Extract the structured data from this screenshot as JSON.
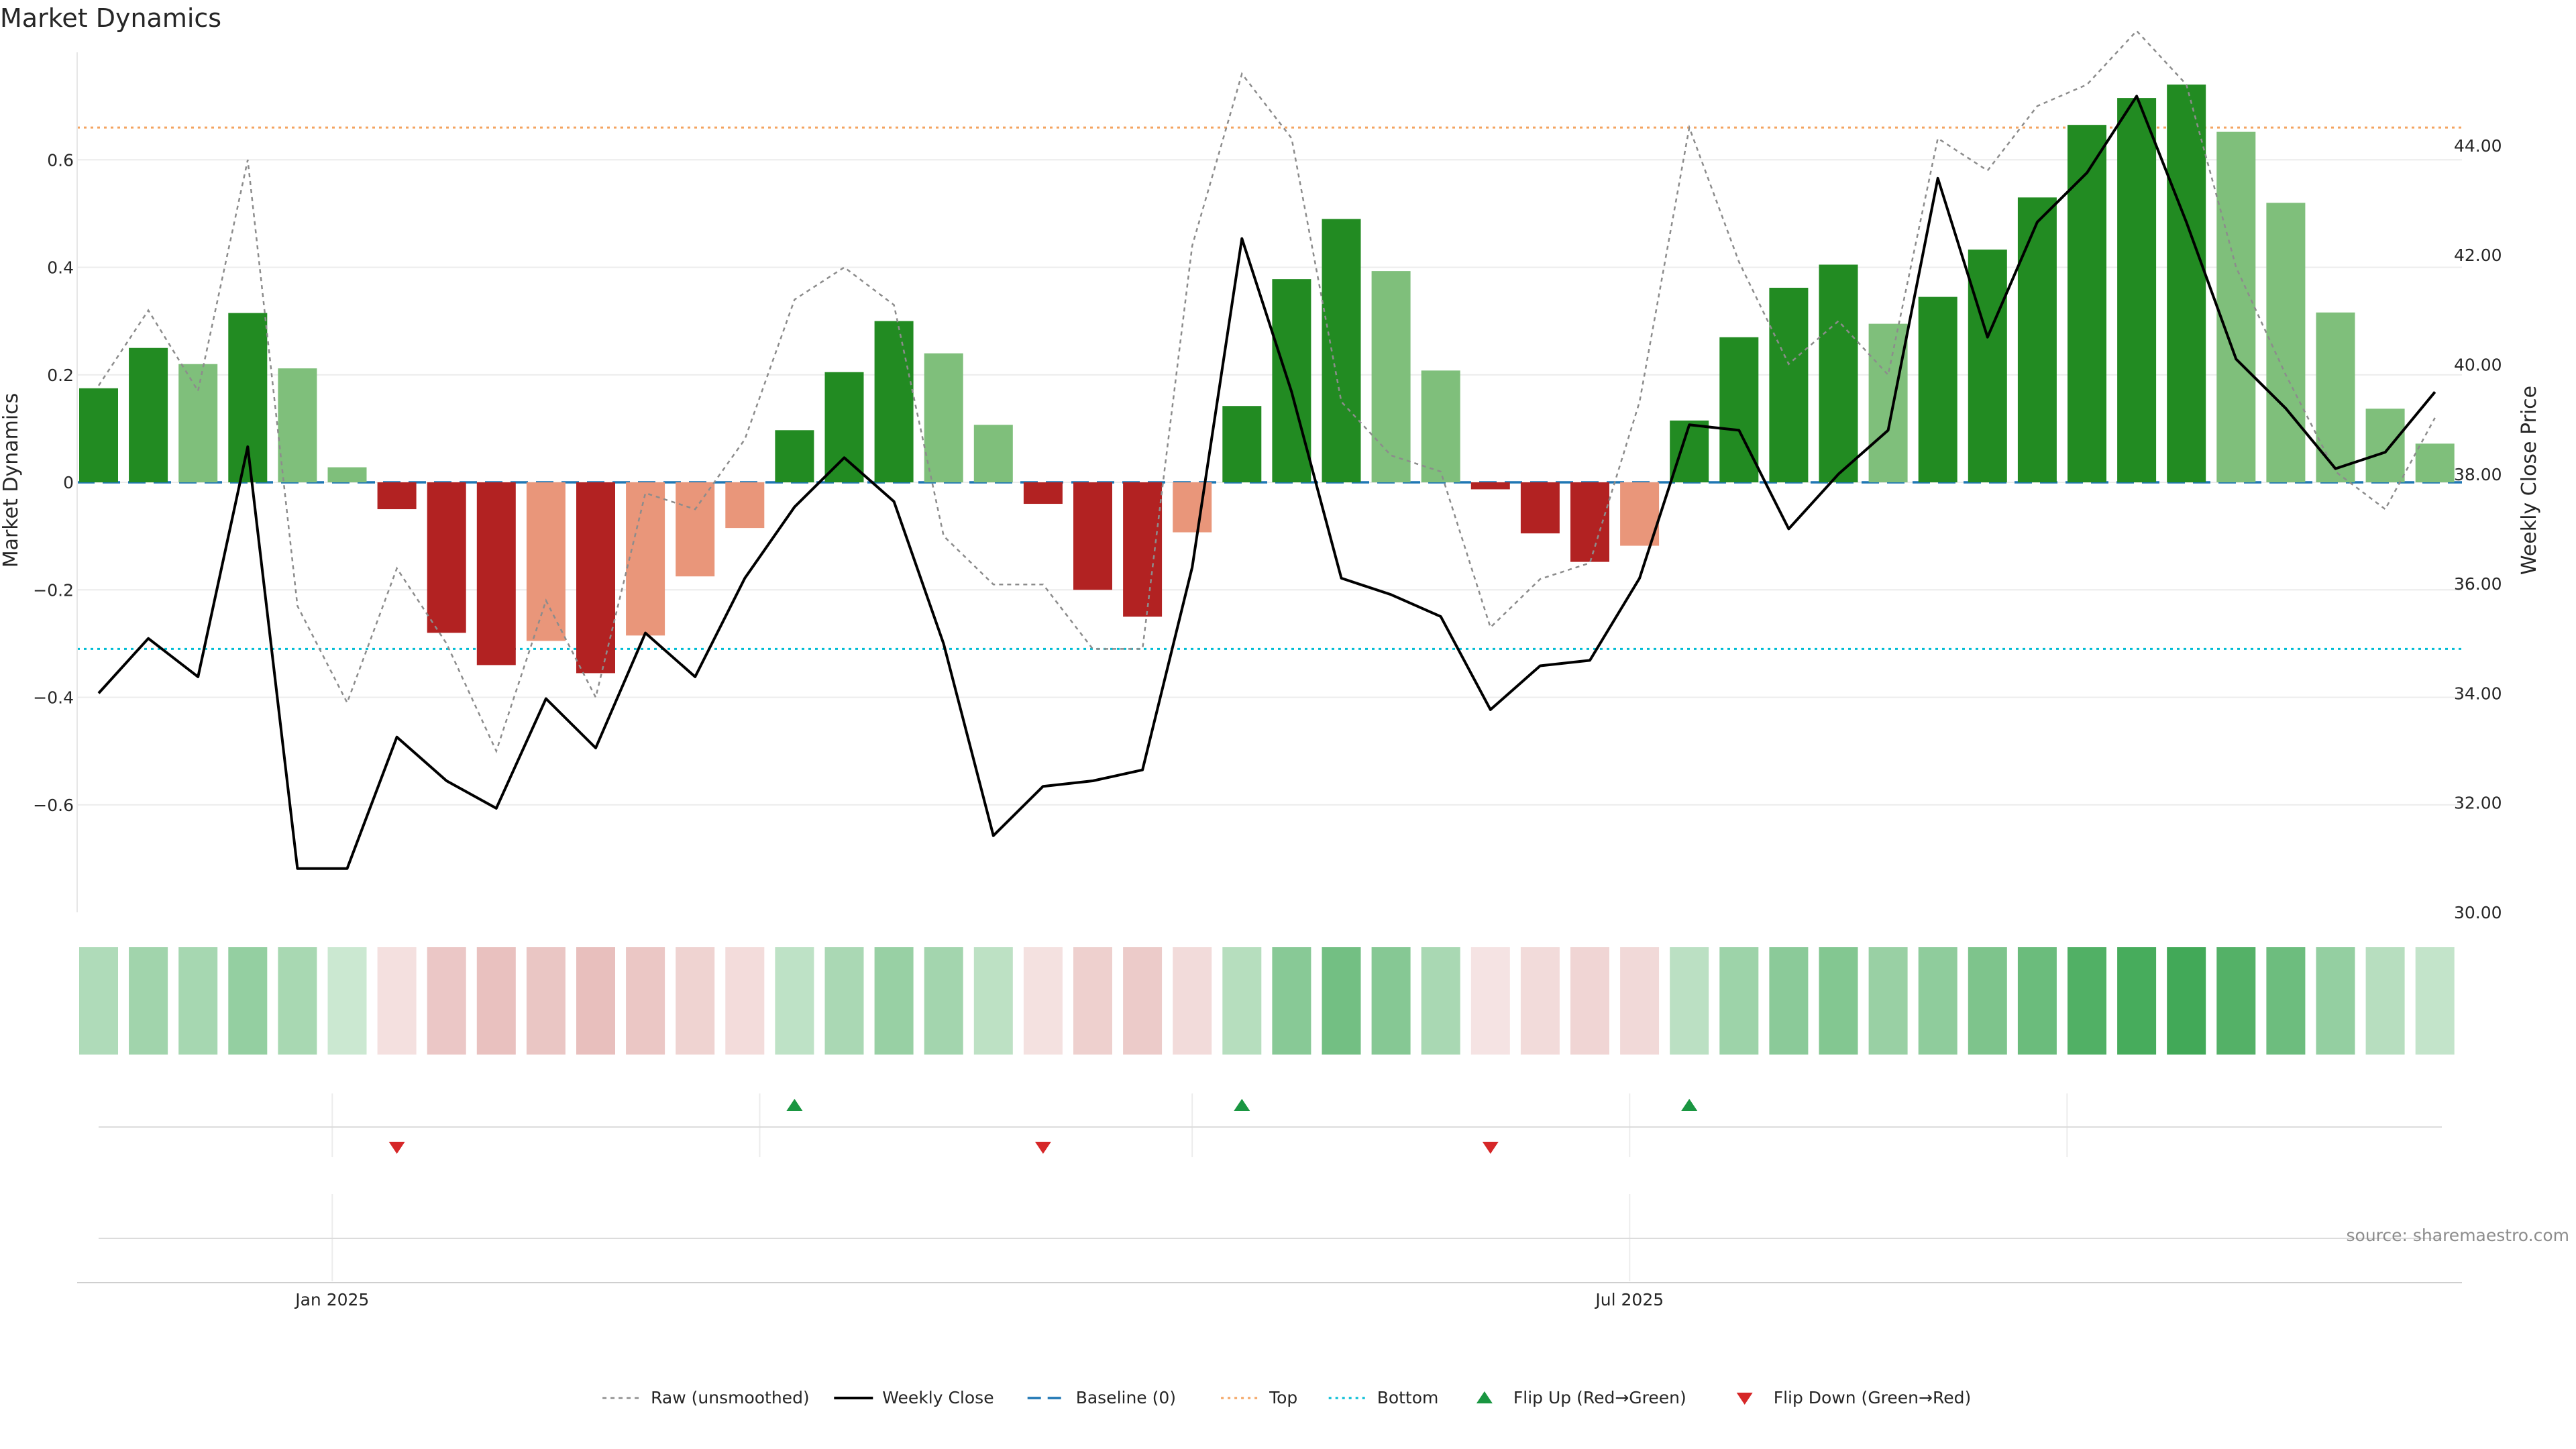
{
  "chart_data": {
    "type": "bar",
    "title": "Market Dynamics",
    "ylabel": "Market Dynamics",
    "y2label": "Weekly Close Price",
    "source": "source: sharemaestro.com",
    "ylim": [
      -0.8,
      0.8
    ],
    "y2lim": [
      30.0,
      45.7
    ],
    "yticks": [
      -0.6,
      -0.4,
      -0.2,
      0,
      0.2,
      0.4,
      0.6
    ],
    "yticks_labels": [
      "−0.6",
      "−0.4",
      "−0.2",
      "0",
      "0.2",
      "0.4",
      "0.6"
    ],
    "y2ticks": [
      30,
      32,
      34,
      36,
      38,
      40,
      42,
      44
    ],
    "y2ticks_labels": [
      "30.00",
      "32.00",
      "34.00",
      "36.00",
      "38.00",
      "40.00",
      "42.00",
      "44.00"
    ],
    "xticks_labels": [
      "Jan 2025",
      "Jul 2025"
    ],
    "xticks_index": [
      4.7,
      30.8
    ],
    "grid": true,
    "legend_position": "bottom-center",
    "reference_lines": {
      "baseline": 0,
      "top": 0.66,
      "bottom": -0.31
    },
    "colors": {
      "strong_up": "#228b22",
      "weak_up": "#7fbf7b",
      "strong_down": "#b22222",
      "weak_down": "#e9967a",
      "close": "#000000",
      "raw": "#8c8c8c",
      "baseline": "#1f77b4",
      "top": "#f4a460",
      "bottom": "#00bcd4",
      "flip_up": "#1a9641",
      "flip_down": "#d62728"
    },
    "series": [
      {
        "key": "smoothed",
        "values": [
          0.175,
          0.25,
          0.22,
          0.315,
          0.212,
          0.028,
          -0.05,
          -0.28,
          -0.34,
          -0.295,
          -0.355,
          -0.285,
          -0.175,
          -0.085,
          0.097,
          0.205,
          0.3,
          0.24,
          0.107,
          -0.04,
          -0.2,
          -0.25,
          -0.093,
          0.142,
          0.378,
          0.49,
          0.393,
          0.208,
          -0.013,
          -0.095,
          -0.148,
          -0.118,
          0.115,
          0.27,
          0.362,
          0.405,
          0.295,
          0.345,
          0.433,
          0.53,
          0.665,
          0.715,
          0.74,
          0.652,
          0.52,
          0.316,
          0.137,
          0.072
        ],
        "strength": [
          "strong",
          "strong",
          "weak",
          "strong",
          "weak",
          "weak",
          "strong",
          "strong",
          "strong",
          "weak",
          "strong",
          "weak",
          "weak",
          "weak",
          "strong",
          "strong",
          "strong",
          "weak",
          "weak",
          "strong",
          "strong",
          "strong",
          "weak",
          "strong",
          "strong",
          "strong",
          "weak",
          "weak",
          "strong",
          "strong",
          "strong",
          "weak",
          "strong",
          "strong",
          "strong",
          "strong",
          "weak",
          "strong",
          "strong",
          "strong",
          "strong",
          "strong",
          "strong",
          "weak",
          "weak",
          "weak",
          "weak",
          "weak"
        ]
      },
      {
        "key": "raw",
        "name": "Raw (unsmoothed)",
        "values": [
          0.18,
          0.32,
          0.17,
          0.6,
          -0.23,
          -0.41,
          -0.16,
          -0.3,
          -0.5,
          -0.22,
          -0.4,
          -0.02,
          -0.05,
          0.08,
          0.34,
          0.4,
          0.33,
          -0.1,
          -0.19,
          -0.19,
          -0.31,
          -0.31,
          0.44,
          0.76,
          0.64,
          0.15,
          0.05,
          0.02,
          -0.27,
          -0.18,
          -0.15,
          0.15,
          0.66,
          0.41,
          0.22,
          0.3,
          0.2,
          0.64,
          0.58,
          0.7,
          0.74,
          0.84,
          0.74,
          0.4,
          0.2,
          0.02,
          -0.05,
          0.12
        ]
      },
      {
        "key": "close",
        "name": "Weekly Close",
        "values": [
          34.0,
          35.0,
          34.3,
          38.5,
          30.8,
          30.8,
          33.2,
          32.4,
          31.9,
          33.9,
          33.0,
          35.1,
          34.3,
          36.1,
          37.4,
          38.3,
          37.5,
          34.9,
          31.4,
          32.3,
          32.4,
          32.6,
          36.3,
          42.3,
          39.5,
          36.1,
          35.8,
          35.4,
          33.7,
          34.5,
          34.6,
          36.1,
          38.9,
          38.8,
          37.0,
          38.0,
          38.8,
          43.4,
          40.5,
          42.6,
          43.5,
          44.9,
          42.6,
          40.1,
          39.2,
          38.1,
          38.4,
          39.5
        ]
      }
    ],
    "flips": {
      "up_index": [
        14,
        23,
        32
      ],
      "down_index": [
        6,
        19,
        28
      ]
    },
    "legend": [
      {
        "key": "raw",
        "label": "Raw (unsmoothed)"
      },
      {
        "key": "close",
        "label": "Weekly Close"
      },
      {
        "key": "baseline",
        "label": "Baseline (0)"
      },
      {
        "key": "top",
        "label": "Top"
      },
      {
        "key": "bottom",
        "label": "Bottom"
      },
      {
        "key": "flip_up",
        "label": "Flip Up (Red→Green)"
      },
      {
        "key": "flip_down",
        "label": "Flip Down (Green→Red)"
      }
    ]
  }
}
